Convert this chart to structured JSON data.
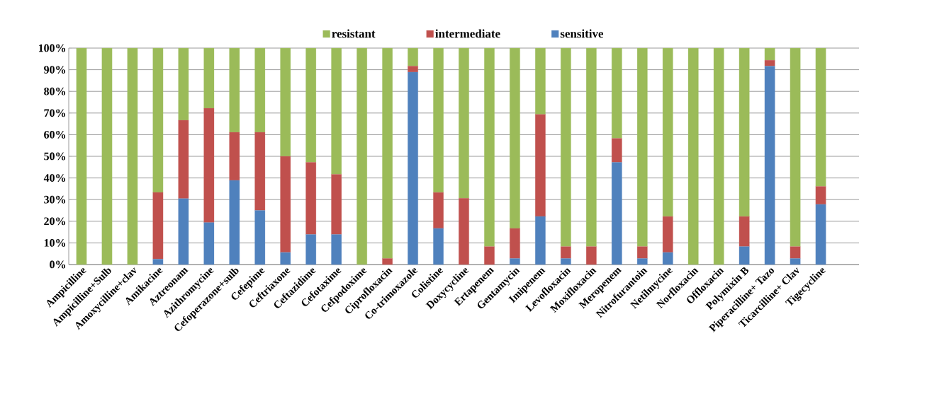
{
  "chart_data": {
    "type": "bar",
    "stacked": true,
    "categories": [
      "Ampicilline",
      "Ampicilline+Sulb",
      "Amoxycilline+clav",
      "Amikacine",
      "Aztreonam",
      "Azithromycine",
      "Cefoperazone+sulb",
      "Cefepime",
      "Ceftriaxone",
      "Ceftazidime",
      "Cefotaxime",
      "Cefpodoxime",
      "Ciprofloxacin",
      "Co-trimoxazole",
      "Colistine",
      "Doxycycline",
      "Ertapenem",
      "Gentamycin",
      "Imipenem",
      "Levofloxacin",
      "Moxifloxacin",
      "Meropenem",
      "Nitrofurantoin",
      "Netilmycine",
      "Norfloxacin",
      "Offloxacin",
      "Polymixin B",
      "Piperacilline+ Tazo",
      "Ticarcilline+ Clav",
      "Tigecycline"
    ],
    "series": [
      {
        "name": "sensitive",
        "color": "#4f81bd",
        "values": [
          0,
          0,
          0,
          2.5,
          30.5,
          19.4,
          38.9,
          25,
          5.6,
          13.9,
          13.9,
          0,
          0,
          88.9,
          16.7,
          0,
          0,
          2.8,
          22.2,
          2.8,
          0,
          47.2,
          2.8,
          5.6,
          0,
          0,
          8.3,
          91.7,
          2.8,
          27.8
        ]
      },
      {
        "name": "intermediate",
        "color": "#c0504d",
        "values": [
          0,
          0,
          0,
          30.8,
          36.2,
          52.8,
          22.2,
          36.1,
          44.4,
          33.3,
          27.8,
          0,
          2.8,
          2.8,
          16.6,
          30.6,
          8.3,
          13.9,
          47.2,
          5.5,
          8.3,
          11.1,
          5.5,
          16.6,
          0,
          0,
          13.9,
          2.7,
          5.5,
          8.3
        ]
      },
      {
        "name": "resistant",
        "color": "#9bbb59",
        "values": [
          100,
          100,
          100,
          66.7,
          33.3,
          27.8,
          38.9,
          38.9,
          50,
          52.8,
          58.3,
          100,
          97.2,
          8.3,
          66.7,
          69.4,
          91.7,
          83.3,
          30.6,
          91.7,
          91.7,
          41.7,
          91.7,
          77.8,
          100,
          100,
          77.8,
          5.6,
          91.7,
          63.9
        ]
      }
    ],
    "ylim": [
      0,
      100
    ],
    "yticks": [
      {
        "value": 0,
        "label": "0%"
      },
      {
        "value": 10,
        "label": "10%"
      },
      {
        "value": 20,
        "label": "20%"
      },
      {
        "value": 30,
        "label": "30%"
      },
      {
        "value": 40,
        "label": "40%"
      },
      {
        "value": 50,
        "label": "50%"
      },
      {
        "value": 60,
        "label": "60%"
      },
      {
        "value": 70,
        "label": "70%"
      },
      {
        "value": 80,
        "label": "80%"
      },
      {
        "value": 90,
        "label": "90%"
      },
      {
        "value": 100,
        "label": "100%"
      }
    ],
    "grid": "y",
    "legend": "top"
  }
}
